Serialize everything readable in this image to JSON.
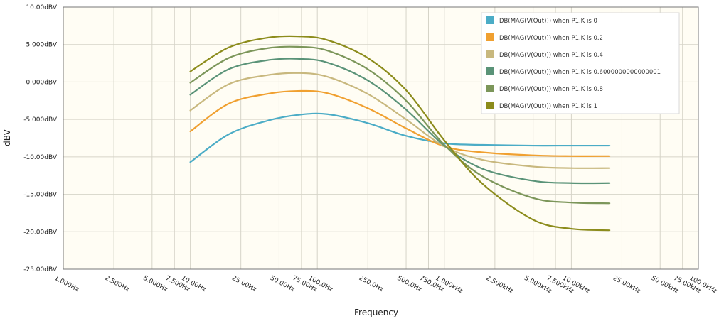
{
  "chart_data": {
    "type": "line",
    "xlabel": "Frequency",
    "ylabel": "dBV",
    "x_scale": "log",
    "xlim": [
      1,
      100000
    ],
    "ylim": [
      -25,
      10
    ],
    "grid": true,
    "legend_position": "top-right",
    "y_ticks": [
      {
        "value": 10,
        "label": "10.00dBV"
      },
      {
        "value": 5,
        "label": "5.000dBV"
      },
      {
        "value": 0,
        "label": "0.000dBV"
      },
      {
        "value": -5,
        "label": "-5.000dBV"
      },
      {
        "value": -10,
        "label": "-10.00dBV"
      },
      {
        "value": -15,
        "label": "-15.00dBV"
      },
      {
        "value": -20,
        "label": "-20.00dBV"
      },
      {
        "value": -25,
        "label": "-25.00dBV"
      }
    ],
    "x_ticks": [
      {
        "value": 1,
        "label": "1.000Hz"
      },
      {
        "value": 2.5,
        "label": "2.500Hz"
      },
      {
        "value": 5,
        "label": "5.000Hz"
      },
      {
        "value": 7.5,
        "label": "7.500Hz"
      },
      {
        "value": 10,
        "label": "10.00Hz"
      },
      {
        "value": 25,
        "label": "25.00Hz"
      },
      {
        "value": 50,
        "label": "50.00Hz"
      },
      {
        "value": 75,
        "label": "75.00Hz"
      },
      {
        "value": 100,
        "label": "100.0Hz"
      },
      {
        "value": 250,
        "label": "250.0Hz"
      },
      {
        "value": 500,
        "label": "500.0Hz"
      },
      {
        "value": 750,
        "label": "750.0Hz"
      },
      {
        "value": 1000,
        "label": "1.000kHz"
      },
      {
        "value": 2500,
        "label": "2.500kHz"
      },
      {
        "value": 5000,
        "label": "5.000kHz"
      },
      {
        "value": 7500,
        "label": "7.500kHz"
      },
      {
        "value": 10000,
        "label": "10.00kHz"
      },
      {
        "value": 25000,
        "label": "25.00kHz"
      },
      {
        "value": 50000,
        "label": "50.00kHz"
      },
      {
        "value": 75000,
        "label": "75.00kHz"
      },
      {
        "value": 100000,
        "label": "100.0kHz"
      }
    ],
    "x": [
      10,
      20,
      40,
      70,
      120,
      250,
      500,
      1000,
      2000,
      5000,
      10000,
      20000
    ],
    "series": [
      {
        "name": "DB(MAG(V(Out))) when P1.K is 0",
        "color": "#4bacc6",
        "values": [
          -10.7,
          -7.0,
          -5.2,
          -4.4,
          -4.3,
          -5.5,
          -7.2,
          -8.2,
          -8.4,
          -8.5,
          -8.5,
          -8.5
        ]
      },
      {
        "name": "DB(MAG(V(Out))) when P1.K is 0.2",
        "color": "#f0a030",
        "values": [
          -6.6,
          -2.9,
          -1.6,
          -1.2,
          -1.5,
          -3.5,
          -6.2,
          -8.6,
          -9.4,
          -9.8,
          -9.9,
          -9.9
        ]
      },
      {
        "name": "DB(MAG(V(Out))) when P1.K is 0.4",
        "color": "#c8b87e",
        "values": [
          -3.8,
          -0.3,
          0.9,
          1.2,
          0.7,
          -1.6,
          -5.0,
          -8.6,
          -10.4,
          -11.3,
          -11.5,
          -11.5
        ]
      },
      {
        "name": "DB(MAG(V(Out))) when P1.K is 0.6000000000000001",
        "color": "#5a9378",
        "values": [
          -1.7,
          1.7,
          2.9,
          3.1,
          2.6,
          0.2,
          -3.7,
          -8.5,
          -11.6,
          -13.2,
          -13.5,
          -13.5
        ]
      },
      {
        "name": "DB(MAG(V(Out))) when P1.K is 0.8",
        "color": "#7c965a",
        "values": [
          -0.1,
          3.2,
          4.5,
          4.7,
          4.2,
          1.7,
          -2.5,
          -8.4,
          -12.6,
          -15.5,
          -16.1,
          -16.2
        ]
      },
      {
        "name": "DB(MAG(V(Out))) when P1.K is 1",
        "color": "#8c8c1c",
        "values": [
          1.4,
          4.6,
          5.9,
          6.1,
          5.6,
          3.2,
          -1.1,
          -7.8,
          -13.6,
          -18.4,
          -19.6,
          -19.8
        ]
      }
    ]
  }
}
